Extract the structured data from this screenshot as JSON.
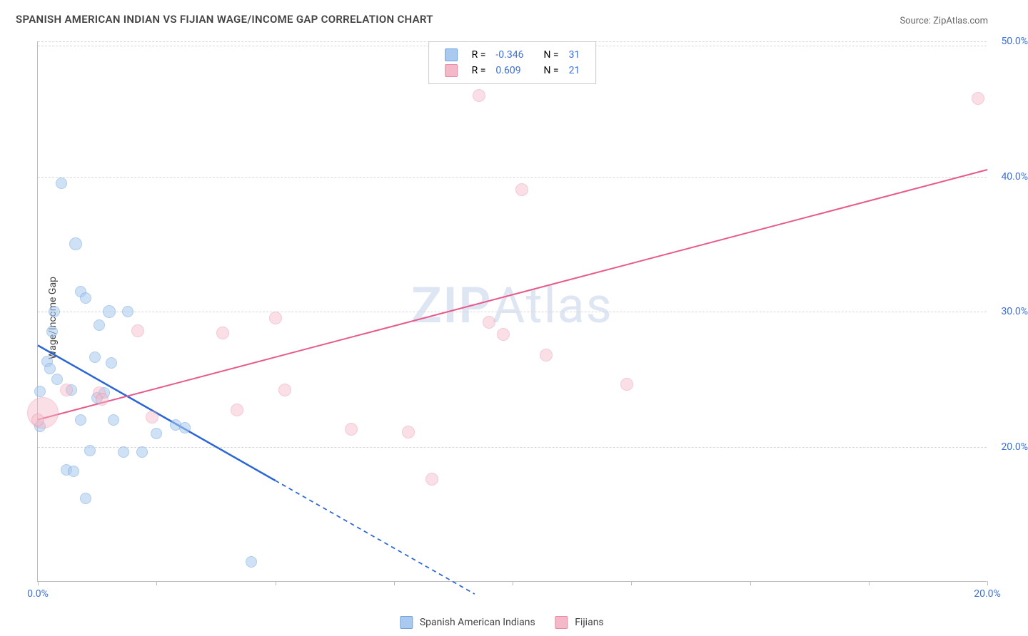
{
  "title": "SPANISH AMERICAN INDIAN VS FIJIAN WAGE/INCOME GAP CORRELATION CHART",
  "source_label": "Source:",
  "source_name": "ZipAtlas.com",
  "ylabel": "Wage/Income Gap",
  "watermark_bold": "ZIP",
  "watermark_light": "Atlas",
  "chart": {
    "type": "scatter",
    "xlim": [
      0,
      20
    ],
    "ylim": [
      10,
      50
    ],
    "xticks": [
      0,
      2.5,
      5,
      7.5,
      10,
      12.5,
      15,
      17.5,
      20
    ],
    "xtick_labels": {
      "0": "0.0%",
      "20": "20.0%"
    },
    "yticks": [
      20,
      30,
      40,
      50
    ],
    "ytick_labels": {
      "20": "20.0%",
      "30": "30.0%",
      "40": "40.0%",
      "50": "50.0%"
    },
    "background_color": "#ffffff",
    "grid_color": "#d8d8d8",
    "axis_color": "#bbbbbb",
    "series": [
      {
        "name": "Spanish American Indians",
        "fill": "#a9c9ee",
        "stroke": "#6ea2e0",
        "fill_opacity": 0.55,
        "marker_radius": 8,
        "r_value": "-0.346",
        "n_value": "31",
        "trend": {
          "x1": 0,
          "y1": 27.5,
          "x2": 5,
          "y2": 17.5,
          "solid_until_x": 5,
          "extend_to_x": 9.2,
          "color": "#2b66d6",
          "width": 2.5
        },
        "points": [
          {
            "x": 0.5,
            "y": 39.5,
            "r": 8
          },
          {
            "x": 0.8,
            "y": 35.0,
            "r": 9
          },
          {
            "x": 0.9,
            "y": 31.5,
            "r": 8
          },
          {
            "x": 1.0,
            "y": 31.0,
            "r": 8
          },
          {
            "x": 1.5,
            "y": 30.0,
            "r": 9
          },
          {
            "x": 0.35,
            "y": 30.0,
            "r": 8
          },
          {
            "x": 1.9,
            "y": 30.0,
            "r": 8
          },
          {
            "x": 1.3,
            "y": 29.0,
            "r": 8
          },
          {
            "x": 0.3,
            "y": 28.5,
            "r": 8
          },
          {
            "x": 0.2,
            "y": 26.3,
            "r": 8
          },
          {
            "x": 0.25,
            "y": 25.8,
            "r": 8
          },
          {
            "x": 1.2,
            "y": 26.6,
            "r": 8
          },
          {
            "x": 1.55,
            "y": 26.2,
            "r": 8
          },
          {
            "x": 0.4,
            "y": 25.0,
            "r": 8
          },
          {
            "x": 0.7,
            "y": 24.2,
            "r": 8
          },
          {
            "x": 0.05,
            "y": 24.1,
            "r": 8
          },
          {
            "x": 1.4,
            "y": 24.0,
            "r": 8
          },
          {
            "x": 1.25,
            "y": 23.6,
            "r": 8
          },
          {
            "x": 1.6,
            "y": 22.0,
            "r": 8
          },
          {
            "x": 0.9,
            "y": 22.0,
            "r": 8
          },
          {
            "x": 2.9,
            "y": 21.6,
            "r": 8
          },
          {
            "x": 3.1,
            "y": 21.4,
            "r": 8
          },
          {
            "x": 2.5,
            "y": 21.0,
            "r": 8
          },
          {
            "x": 1.1,
            "y": 19.7,
            "r": 8
          },
          {
            "x": 1.8,
            "y": 19.6,
            "r": 8
          },
          {
            "x": 2.2,
            "y": 19.6,
            "r": 8
          },
          {
            "x": 0.6,
            "y": 18.3,
            "r": 8
          },
          {
            "x": 0.75,
            "y": 18.2,
            "r": 8
          },
          {
            "x": 1.0,
            "y": 16.2,
            "r": 8
          },
          {
            "x": 4.5,
            "y": 11.5,
            "r": 8
          },
          {
            "x": 0.05,
            "y": 21.5,
            "r": 8
          }
        ]
      },
      {
        "name": "Fijians",
        "fill": "#f4b9c8",
        "stroke": "#e88aa4",
        "fill_opacity": 0.45,
        "marker_radius": 8,
        "r_value": "0.609",
        "n_value": "21",
        "trend": {
          "x1": 0,
          "y1": 22.0,
          "x2": 20,
          "y2": 40.5,
          "solid_until_x": 20,
          "extend_to_x": 20,
          "color": "#e75a8a",
          "width": 2
        },
        "points": [
          {
            "x": 9.3,
            "y": 46.0,
            "r": 9
          },
          {
            "x": 19.8,
            "y": 45.8,
            "r": 9
          },
          {
            "x": 10.2,
            "y": 39.0,
            "r": 9
          },
          {
            "x": 5.0,
            "y": 29.5,
            "r": 9
          },
          {
            "x": 9.5,
            "y": 29.2,
            "r": 9
          },
          {
            "x": 2.1,
            "y": 28.6,
            "r": 9
          },
          {
            "x": 3.9,
            "y": 28.4,
            "r": 9
          },
          {
            "x": 9.8,
            "y": 28.3,
            "r": 9
          },
          {
            "x": 10.7,
            "y": 26.8,
            "r": 9
          },
          {
            "x": 12.4,
            "y": 24.6,
            "r": 9
          },
          {
            "x": 0.6,
            "y": 24.2,
            "r": 9
          },
          {
            "x": 1.3,
            "y": 24.0,
            "r": 9
          },
          {
            "x": 5.2,
            "y": 24.2,
            "r": 9
          },
          {
            "x": 1.35,
            "y": 23.5,
            "r": 9
          },
          {
            "x": 4.2,
            "y": 22.7,
            "r": 9
          },
          {
            "x": 2.4,
            "y": 22.2,
            "r": 9
          },
          {
            "x": 6.6,
            "y": 21.3,
            "r": 9
          },
          {
            "x": 7.8,
            "y": 21.1,
            "r": 9
          },
          {
            "x": 8.3,
            "y": 17.6,
            "r": 9
          },
          {
            "x": 0.1,
            "y": 22.5,
            "r": 22
          },
          {
            "x": 0.0,
            "y": 22.0,
            "r": 9
          }
        ]
      }
    ]
  },
  "legend_bottom": [
    {
      "label": "Spanish American Indians",
      "fill": "#a9c9ee",
      "stroke": "#6ea2e0"
    },
    {
      "label": "Fijians",
      "fill": "#f4b9c8",
      "stroke": "#e88aa4"
    }
  ]
}
